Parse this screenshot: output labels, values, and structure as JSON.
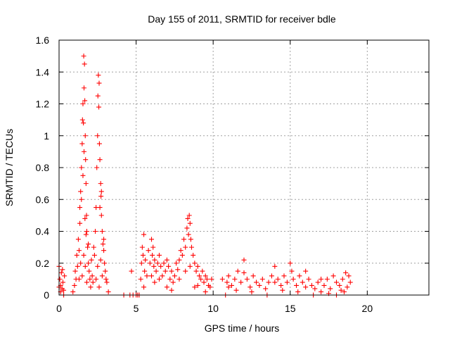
{
  "chart_data": {
    "type": "scatter",
    "title": "Day 155 of 2011, SRMTID for receiver bdle",
    "xlabel": "GPS time / hours",
    "ylabel": "SRMTID / TECUs",
    "xlim": [
      0,
      24
    ],
    "ylim": [
      0,
      1.6
    ],
    "xticks": [
      0,
      5,
      10,
      15,
      20
    ],
    "xtick_labels": [
      "0",
      "5",
      "10",
      "15",
      "20"
    ],
    "yticks": [
      0,
      0.2,
      0.4,
      0.6,
      0.8,
      1,
      1.2,
      1.4,
      1.6
    ],
    "ytick_labels": [
      "0",
      "0.2",
      "0.4",
      "0.6",
      "0.8",
      "1",
      "1.2",
      "1.4",
      "1.6"
    ],
    "grid": true,
    "marker": "+",
    "series": [
      {
        "name": "SRMTID",
        "color": "#ff0000",
        "points": [
          [
            0.0,
            0.05
          ],
          [
            0.05,
            0.1
          ],
          [
            0.1,
            0.02
          ],
          [
            0.15,
            0.14
          ],
          [
            0.2,
            0.04
          ],
          [
            0.25,
            0.08
          ],
          [
            0.3,
            0.0
          ],
          [
            0.35,
            0.12
          ],
          [
            0.0,
            0.18
          ],
          [
            0.1,
            0.06
          ],
          [
            0.22,
            0.16
          ],
          [
            0.3,
            0.03
          ],
          [
            0.9,
            0.02
          ],
          [
            1.0,
            0.06
          ],
          [
            1.05,
            0.15
          ],
          [
            1.1,
            0.1
          ],
          [
            1.15,
            0.25
          ],
          [
            1.2,
            0.18
          ],
          [
            1.25,
            0.35
          ],
          [
            1.3,
            0.28
          ],
          [
            1.35,
            0.45
          ],
          [
            1.4,
            0.65
          ],
          [
            1.45,
            0.8
          ],
          [
            1.5,
            0.95
          ],
          [
            1.52,
            1.1
          ],
          [
            1.55,
            1.2
          ],
          [
            1.58,
            1.08
          ],
          [
            1.6,
            1.5
          ],
          [
            1.62,
            1.3
          ],
          [
            1.65,
            1.45
          ],
          [
            1.67,
            1.22
          ],
          [
            1.7,
            1.0
          ],
          [
            1.72,
            0.85
          ],
          [
            1.75,
            0.7
          ],
          [
            1.78,
            0.5
          ],
          [
            1.8,
            0.4
          ],
          [
            1.85,
            0.3
          ],
          [
            1.9,
            0.2
          ],
          [
            1.95,
            0.15
          ],
          [
            2.0,
            0.1
          ],
          [
            2.05,
            0.05
          ],
          [
            2.1,
            0.22
          ],
          [
            2.15,
            0.12
          ],
          [
            2.2,
            0.08
          ],
          [
            2.25,
            0.3
          ],
          [
            1.3,
            0.1
          ],
          [
            1.4,
            0.2
          ],
          [
            1.5,
            0.12
          ],
          [
            1.6,
            0.25
          ],
          [
            1.7,
            0.18
          ],
          [
            1.8,
            0.08
          ],
          [
            1.9,
            0.32
          ],
          [
            1.35,
            0.55
          ],
          [
            1.45,
            0.6
          ],
          [
            1.55,
            0.75
          ],
          [
            1.62,
            0.9
          ],
          [
            1.68,
            0.48
          ],
          [
            1.75,
            0.38
          ],
          [
            2.3,
            0.25
          ],
          [
            2.35,
            0.4
          ],
          [
            2.4,
            0.55
          ],
          [
            2.45,
            0.8
          ],
          [
            2.5,
            1.0
          ],
          [
            2.52,
            1.25
          ],
          [
            2.55,
            1.38
          ],
          [
            2.58,
            1.18
          ],
          [
            2.6,
            1.33
          ],
          [
            2.62,
            0.95
          ],
          [
            2.65,
            0.85
          ],
          [
            2.7,
            0.7
          ],
          [
            2.72,
            0.62
          ],
          [
            2.75,
            0.5
          ],
          [
            2.8,
            0.4
          ],
          [
            2.85,
            0.32
          ],
          [
            2.9,
            0.28
          ],
          [
            2.95,
            0.2
          ],
          [
            3.0,
            0.15
          ],
          [
            3.05,
            0.1
          ],
          [
            2.4,
            0.1
          ],
          [
            2.5,
            0.18
          ],
          [
            2.6,
            0.05
          ],
          [
            2.7,
            0.22
          ],
          [
            2.8,
            0.12
          ],
          [
            2.9,
            0.35
          ],
          [
            3.1,
            0.08
          ],
          [
            3.2,
            0.02
          ],
          [
            2.65,
            0.55
          ],
          [
            2.75,
            0.65
          ],
          [
            4.2,
            0.0
          ],
          [
            4.6,
            0.0
          ],
          [
            4.8,
            0.0
          ],
          [
            5.0,
            0.0
          ],
          [
            5.1,
            0.0
          ],
          [
            5.2,
            0.0
          ],
          [
            4.7,
            0.15
          ],
          [
            5.3,
            0.1
          ],
          [
            5.35,
            0.2
          ],
          [
            5.4,
            0.3
          ],
          [
            5.45,
            0.25
          ],
          [
            5.5,
            0.38
          ],
          [
            5.55,
            0.15
          ],
          [
            5.6,
            0.22
          ],
          [
            5.7,
            0.12
          ],
          [
            5.8,
            0.28
          ],
          [
            5.9,
            0.2
          ],
          [
            6.0,
            0.35
          ],
          [
            6.05,
            0.25
          ],
          [
            6.1,
            0.3
          ],
          [
            6.15,
            0.18
          ],
          [
            6.2,
            0.22
          ],
          [
            6.3,
            0.15
          ],
          [
            6.4,
            0.2
          ],
          [
            6.5,
            0.25
          ],
          [
            6.6,
            0.18
          ],
          [
            6.7,
            0.12
          ],
          [
            6.8,
            0.2
          ],
          [
            6.9,
            0.15
          ],
          [
            7.0,
            0.22
          ],
          [
            7.1,
            0.18
          ],
          [
            7.2,
            0.1
          ],
          [
            7.3,
            0.15
          ],
          [
            7.4,
            0.08
          ],
          [
            7.5,
            0.12
          ],
          [
            7.6,
            0.2
          ],
          [
            7.7,
            0.16
          ],
          [
            7.8,
            0.22
          ],
          [
            7.9,
            0.28
          ],
          [
            8.0,
            0.25
          ],
          [
            8.1,
            0.35
          ],
          [
            8.2,
            0.3
          ],
          [
            8.3,
            0.42
          ],
          [
            8.35,
            0.48
          ],
          [
            8.4,
            0.38
          ],
          [
            8.45,
            0.5
          ],
          [
            8.5,
            0.45
          ],
          [
            8.55,
            0.35
          ],
          [
            8.6,
            0.3
          ],
          [
            8.7,
            0.25
          ],
          [
            8.8,
            0.2
          ],
          [
            8.9,
            0.15
          ],
          [
            9.0,
            0.18
          ],
          [
            9.1,
            0.12
          ],
          [
            9.2,
            0.1
          ],
          [
            9.3,
            0.15
          ],
          [
            9.4,
            0.08
          ],
          [
            9.5,
            0.12
          ],
          [
            9.6,
            0.1
          ],
          [
            9.7,
            0.06
          ],
          [
            9.8,
            0.05
          ],
          [
            9.9,
            0.1
          ],
          [
            5.5,
            0.05
          ],
          [
            6.2,
            0.08
          ],
          [
            7.0,
            0.05
          ],
          [
            7.8,
            0.1
          ],
          [
            8.2,
            0.15
          ],
          [
            8.8,
            0.05
          ],
          [
            9.5,
            0.02
          ],
          [
            6.0,
            0.12
          ],
          [
            6.5,
            0.1
          ],
          [
            7.3,
            0.03
          ],
          [
            8.5,
            0.18
          ],
          [
            9.0,
            0.06
          ],
          [
            10.6,
            0.1
          ],
          [
            10.8,
            0.0
          ],
          [
            10.9,
            0.08
          ],
          [
            11.0,
            0.12
          ],
          [
            11.2,
            0.06
          ],
          [
            11.4,
            0.1
          ],
          [
            11.6,
            0.15
          ],
          [
            11.8,
            0.08
          ],
          [
            12.0,
            0.22
          ],
          [
            12.2,
            0.1
          ],
          [
            12.4,
            0.05
          ],
          [
            12.6,
            0.12
          ],
          [
            12.8,
            0.08
          ],
          [
            13.0,
            0.06
          ],
          [
            13.2,
            0.1
          ],
          [
            13.4,
            0.04
          ],
          [
            13.6,
            0.08
          ],
          [
            13.8,
            0.12
          ],
          [
            14.0,
            0.18
          ],
          [
            14.2,
            0.1
          ],
          [
            14.4,
            0.06
          ],
          [
            14.6,
            0.12
          ],
          [
            14.8,
            0.08
          ],
          [
            15.0,
            0.2
          ],
          [
            15.1,
            0.15
          ],
          [
            15.2,
            0.1
          ],
          [
            15.4,
            0.06
          ],
          [
            15.6,
            0.12
          ],
          [
            15.8,
            0.08
          ],
          [
            16.0,
            0.15
          ],
          [
            16.2,
            0.1
          ],
          [
            16.4,
            0.06
          ],
          [
            16.6,
            0.04
          ],
          [
            16.8,
            0.08
          ],
          [
            17.0,
            0.02
          ],
          [
            17.2,
            0.06
          ],
          [
            17.4,
            0.1
          ],
          [
            17.6,
            0.04
          ],
          [
            17.8,
            0.12
          ],
          [
            18.0,
            0.08
          ],
          [
            18.2,
            0.06
          ],
          [
            18.4,
            0.1
          ],
          [
            18.6,
            0.14
          ],
          [
            18.8,
            0.12
          ],
          [
            18.9,
            0.08
          ],
          [
            18.5,
            0.02
          ],
          [
            18.7,
            0.05
          ],
          [
            11.0,
            0.05
          ],
          [
            11.5,
            0.03
          ],
          [
            12.5,
            0.02
          ],
          [
            13.5,
            0.0
          ],
          [
            14.5,
            0.03
          ],
          [
            15.5,
            0.02
          ],
          [
            16.5,
            0.0
          ],
          [
            17.5,
            0.01
          ],
          [
            18.0,
            0.0
          ],
          [
            12.0,
            0.14
          ],
          [
            14.0,
            0.08
          ],
          [
            16.0,
            0.05
          ],
          [
            17.0,
            0.1
          ],
          [
            18.3,
            0.03
          ]
        ]
      }
    ]
  }
}
